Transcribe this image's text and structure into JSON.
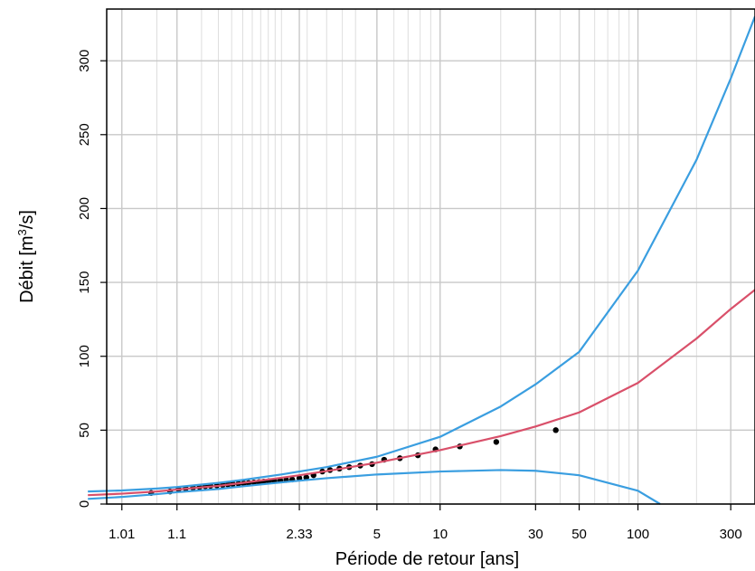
{
  "chart_data": {
    "type": "scatter",
    "title": "",
    "xlabel": "Période de retour [ans]",
    "ylabel_main": "Débit  [m",
    "ylabel_sup": "3",
    "ylabel_tail": "/s]",
    "x_scale": "gumbel (return period)",
    "xlim": [
      1.004,
      400
    ],
    "ylim": [
      0,
      335
    ],
    "grid": true,
    "x_major_ticks": [
      1.01,
      1.1,
      2.33,
      5,
      10,
      30,
      50,
      100,
      300
    ],
    "x_tick_labels": [
      "1.01",
      "1.1",
      "2.33",
      "5",
      "10",
      "30",
      "50",
      "100",
      "300"
    ],
    "x_minor_gridlines": [
      1.001,
      1.05,
      1.2,
      1.3,
      1.4,
      1.5,
      1.6,
      1.7,
      1.8,
      1.9,
      2,
      2.5,
      3,
      3.5,
      4,
      6,
      7,
      8,
      9,
      20,
      40,
      60,
      70,
      80,
      90,
      200,
      1000
    ],
    "y_ticks": [
      0,
      50,
      100,
      150,
      200,
      250,
      300
    ],
    "y_tick_labels": [
      "0",
      "50",
      "100",
      "150",
      "200",
      "250",
      "300"
    ],
    "series": [
      {
        "kind": "points",
        "color": "#000000",
        "points": [
          [
            1.04,
            7.5
          ],
          [
            1.08,
            8.5
          ],
          [
            1.105,
            10.0
          ],
          [
            1.13,
            10.5
          ],
          [
            1.16,
            11.0
          ],
          [
            1.19,
            11.5
          ],
          [
            1.22,
            12.0
          ],
          [
            1.25,
            12.3
          ],
          [
            1.29,
            12.6
          ],
          [
            1.33,
            12.9
          ],
          [
            1.37,
            13.2
          ],
          [
            1.41,
            13.5
          ],
          [
            1.46,
            13.8
          ],
          [
            1.51,
            14.0
          ],
          [
            1.56,
            14.3
          ],
          [
            1.62,
            14.6
          ],
          [
            1.68,
            14.9
          ],
          [
            1.74,
            15.2
          ],
          [
            1.81,
            15.5
          ],
          [
            1.89,
            15.7
          ],
          [
            1.98,
            16.0
          ],
          [
            2.08,
            16.3
          ],
          [
            2.19,
            16.6
          ],
          [
            2.33,
            17.5
          ],
          [
            2.48,
            18.0
          ],
          [
            2.65,
            19.5
          ],
          [
            2.88,
            22.0
          ],
          [
            3.1,
            23.0
          ],
          [
            3.4,
            24.0
          ],
          [
            3.75,
            25.0
          ],
          [
            4.2,
            26.0
          ],
          [
            4.75,
            27.0
          ],
          [
            5.4,
            30.0
          ],
          [
            6.4,
            31.0
          ],
          [
            7.8,
            33.0
          ],
          [
            9.5,
            37.0
          ],
          [
            12.5,
            39.0
          ],
          [
            19.0,
            42.0
          ],
          [
            38.0,
            50.0
          ]
        ]
      },
      {
        "kind": "line",
        "color": "#d9506a",
        "points": [
          [
            1.001,
            6.0
          ],
          [
            1.01,
            7.0
          ],
          [
            1.05,
            8.5
          ],
          [
            1.1,
            9.8
          ],
          [
            1.3,
            12.3
          ],
          [
            1.5,
            14.3
          ],
          [
            2,
            17.8
          ],
          [
            2.33,
            19.5
          ],
          [
            3,
            22.3
          ],
          [
            5,
            28.0
          ],
          [
            10,
            36.5
          ],
          [
            20,
            46.0
          ],
          [
            30,
            52.5
          ],
          [
            50,
            62.0
          ],
          [
            100,
            82.0
          ],
          [
            200,
            112.0
          ],
          [
            300,
            132.0
          ],
          [
            400,
            145.0
          ]
        ]
      },
      {
        "kind": "line",
        "color": "#3a9ee0",
        "points": [
          [
            1.001,
            8.5
          ],
          [
            1.01,
            9.2
          ],
          [
            1.05,
            10.5
          ],
          [
            1.1,
            11.5
          ],
          [
            1.3,
            14.3
          ],
          [
            1.5,
            16.3
          ],
          [
            2,
            20.0
          ],
          [
            2.33,
            22.0
          ],
          [
            3,
            25.0
          ],
          [
            5,
            32.0
          ],
          [
            10,
            45.5
          ],
          [
            20,
            66.0
          ],
          [
            30,
            81.0
          ],
          [
            50,
            103.0
          ],
          [
            100,
            158.0
          ],
          [
            200,
            233.0
          ],
          [
            300,
            288.0
          ],
          [
            400,
            330.0
          ]
        ]
      },
      {
        "kind": "line",
        "color": "#3a9ee0",
        "points": [
          [
            1.001,
            3.5
          ],
          [
            1.01,
            4.8
          ],
          [
            1.05,
            6.7
          ],
          [
            1.1,
            8.0
          ],
          [
            1.3,
            10.2
          ],
          [
            1.5,
            12.0
          ],
          [
            2,
            14.7
          ],
          [
            2.33,
            15.8
          ],
          [
            3,
            17.5
          ],
          [
            5,
            20.0
          ],
          [
            10,
            22.0
          ],
          [
            20,
            23.0
          ],
          [
            30,
            22.5
          ],
          [
            50,
            19.5
          ],
          [
            100,
            9.0
          ],
          [
            130,
            0.0
          ]
        ]
      }
    ]
  }
}
